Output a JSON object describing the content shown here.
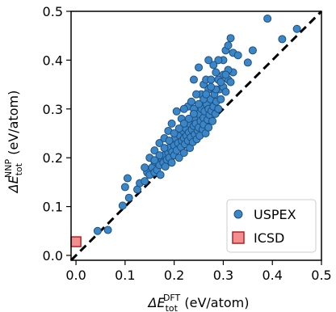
{
  "chart_data": {
    "type": "scatter",
    "xlabel": {
      "prefix": "ΔE",
      "sup": "DFT",
      "sub": "tot",
      "unit": " (eV/atom)"
    },
    "ylabel": {
      "prefix": "ΔE",
      "sup": "NNP",
      "sub": "tot",
      "unit": " (eV/atom)"
    },
    "xlim": [
      -0.01,
      0.5
    ],
    "ylim": [
      -0.01,
      0.5
    ],
    "xticks": [
      "0.0",
      "0.1",
      "0.2",
      "0.3",
      "0.4",
      "0.5"
    ],
    "yticks": [
      "0.0",
      "0.1",
      "0.2",
      "0.3",
      "0.4",
      "0.5"
    ],
    "grid": false,
    "legend_position": "lower-right",
    "reference_line": "y = x (dashed)",
    "series": [
      {
        "name": "USPEX",
        "marker": "circle",
        "color": "#3a86c6",
        "edge": "#1f4f80",
        "points": [
          [
            0.044,
            0.05
          ],
          [
            0.065,
            0.052
          ],
          [
            0.095,
            0.102
          ],
          [
            0.108,
            0.118
          ],
          [
            0.1,
            0.14
          ],
          [
            0.105,
            0.158
          ],
          [
            0.125,
            0.135
          ],
          [
            0.13,
            0.148
          ],
          [
            0.14,
            0.152
          ],
          [
            0.145,
            0.17
          ],
          [
            0.15,
            0.165
          ],
          [
            0.155,
            0.18
          ],
          [
            0.16,
            0.17
          ],
          [
            0.16,
            0.192
          ],
          [
            0.165,
            0.175
          ],
          [
            0.17,
            0.185
          ],
          [
            0.172,
            0.165
          ],
          [
            0.175,
            0.198
          ],
          [
            0.178,
            0.19
          ],
          [
            0.18,
            0.205
          ],
          [
            0.182,
            0.182
          ],
          [
            0.185,
            0.196
          ],
          [
            0.188,
            0.21
          ],
          [
            0.19,
            0.2
          ],
          [
            0.19,
            0.22
          ],
          [
            0.195,
            0.19
          ],
          [
            0.196,
            0.212
          ],
          [
            0.2,
            0.225
          ],
          [
            0.2,
            0.205
          ],
          [
            0.202,
            0.24
          ],
          [
            0.205,
            0.215
          ],
          [
            0.208,
            0.23
          ],
          [
            0.21,
            0.2
          ],
          [
            0.212,
            0.245
          ],
          [
            0.214,
            0.222
          ],
          [
            0.216,
            0.235
          ],
          [
            0.218,
            0.255
          ],
          [
            0.22,
            0.21
          ],
          [
            0.22,
            0.24
          ],
          [
            0.222,
            0.228
          ],
          [
            0.224,
            0.26
          ],
          [
            0.225,
            0.245
          ],
          [
            0.228,
            0.235
          ],
          [
            0.23,
            0.252
          ],
          [
            0.23,
            0.27
          ],
          [
            0.232,
            0.22
          ],
          [
            0.234,
            0.242
          ],
          [
            0.236,
            0.258
          ],
          [
            0.238,
            0.232
          ],
          [
            0.24,
            0.265
          ],
          [
            0.24,
            0.28
          ],
          [
            0.242,
            0.248
          ],
          [
            0.244,
            0.27
          ],
          [
            0.246,
            0.238
          ],
          [
            0.248,
            0.255
          ],
          [
            0.25,
            0.29
          ],
          [
            0.25,
            0.262
          ],
          [
            0.252,
            0.245
          ],
          [
            0.254,
            0.275
          ],
          [
            0.256,
            0.3
          ],
          [
            0.258,
            0.258
          ],
          [
            0.26,
            0.282
          ],
          [
            0.26,
            0.268
          ],
          [
            0.262,
            0.295
          ],
          [
            0.264,
            0.25
          ],
          [
            0.266,
            0.31
          ],
          [
            0.268,
            0.278
          ],
          [
            0.27,
            0.3
          ],
          [
            0.27,
            0.262
          ],
          [
            0.272,
            0.288
          ],
          [
            0.274,
            0.32
          ],
          [
            0.276,
            0.296
          ],
          [
            0.278,
            0.275
          ],
          [
            0.28,
            0.305
          ],
          [
            0.282,
            0.33
          ],
          [
            0.284,
            0.29
          ],
          [
            0.286,
            0.315
          ],
          [
            0.29,
            0.3
          ],
          [
            0.292,
            0.34
          ],
          [
            0.295,
            0.32
          ],
          [
            0.3,
            0.345
          ],
          [
            0.305,
            0.335
          ],
          [
            0.31,
            0.36
          ],
          [
            0.315,
            0.355
          ],
          [
            0.32,
            0.375
          ],
          [
            0.255,
            0.33
          ],
          [
            0.26,
            0.35
          ],
          [
            0.265,
            0.36
          ],
          [
            0.245,
            0.33
          ],
          [
            0.228,
            0.305
          ],
          [
            0.215,
            0.28
          ],
          [
            0.205,
            0.295
          ],
          [
            0.195,
            0.27
          ],
          [
            0.188,
            0.255
          ],
          [
            0.235,
            0.315
          ],
          [
            0.275,
            0.36
          ],
          [
            0.285,
            0.375
          ],
          [
            0.3,
            0.4
          ],
          [
            0.305,
            0.42
          ],
          [
            0.31,
            0.43
          ],
          [
            0.315,
            0.445
          ],
          [
            0.32,
            0.415
          ],
          [
            0.33,
            0.41
          ],
          [
            0.35,
            0.395
          ],
          [
            0.36,
            0.42
          ],
          [
            0.39,
            0.485
          ],
          [
            0.42,
            0.443
          ],
          [
            0.45,
            0.464
          ],
          [
            0.29,
            0.4
          ],
          [
            0.28,
            0.39
          ],
          [
            0.27,
            0.4
          ],
          [
            0.25,
            0.385
          ],
          [
            0.24,
            0.36
          ],
          [
            0.22,
            0.3
          ],
          [
            0.24,
            0.3
          ],
          [
            0.16,
            0.215
          ],
          [
            0.17,
            0.23
          ],
          [
            0.18,
            0.24
          ],
          [
            0.15,
            0.2
          ],
          [
            0.14,
            0.18
          ],
          [
            0.3,
            0.37
          ],
          [
            0.31,
            0.38
          ],
          [
            0.29,
            0.36
          ],
          [
            0.27,
            0.34
          ],
          [
            0.26,
            0.32
          ],
          [
            0.25,
            0.31
          ],
          [
            0.24,
            0.29
          ],
          [
            0.23,
            0.28
          ],
          [
            0.22,
            0.27
          ],
          [
            0.21,
            0.26
          ],
          [
            0.2,
            0.25
          ],
          [
            0.19,
            0.235
          ],
          [
            0.18,
            0.22
          ],
          [
            0.17,
            0.205
          ],
          [
            0.16,
            0.195
          ],
          [
            0.285,
            0.34
          ],
          [
            0.295,
            0.355
          ],
          [
            0.305,
            0.37
          ],
          [
            0.265,
            0.33
          ],
          [
            0.275,
            0.345
          ]
        ]
      },
      {
        "name": "ICSD",
        "marker": "square",
        "color": "#f28e8e",
        "edge": "#b22222",
        "points": [
          [
            0.0,
            0.028
          ]
        ]
      }
    ]
  }
}
